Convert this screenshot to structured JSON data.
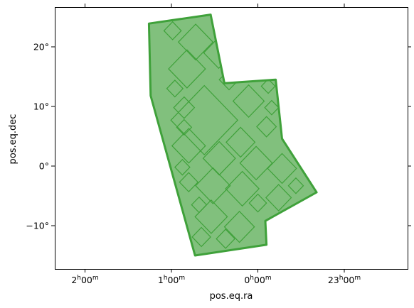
{
  "chart_data": {
    "type": "coverage-map",
    "xlabel": "pos.eq.ra",
    "ylabel": "pos.eq.dec",
    "x_ticks": [
      {
        "label": "2h00m",
        "h": "2",
        "m": "00",
        "ra_deg": 30
      },
      {
        "label": "1h00m",
        "h": "1",
        "m": "00",
        "ra_deg": 15
      },
      {
        "label": "0h00m",
        "h": "0",
        "m": "00",
        "ra_deg": 0
      },
      {
        "label": "23h00m",
        "h": "23",
        "m": "00",
        "ra_deg": -15
      }
    ],
    "y_ticks": [
      {
        "label": "20°",
        "dec": 20
      },
      {
        "label": "10°",
        "dec": 10
      },
      {
        "label": "0°",
        "dec": 0
      },
      {
        "label": "−10°",
        "dec": -10
      }
    ],
    "xlim": [
      37.0,
      -37.0
    ],
    "ylim": [
      -17.5,
      26.5
    ],
    "colors": {
      "fill": "#81c07d",
      "edge": "#3fa13a"
    },
    "region": [
      [
        18.9,
        23.9
      ],
      [
        8.2,
        25.4
      ],
      [
        5.8,
        13.9
      ],
      [
        -3.1,
        14.5
      ],
      [
        -4.2,
        4.6
      ],
      [
        -10.2,
        -4.4
      ],
      [
        -1.3,
        -9.2
      ],
      [
        -1.5,
        -13.2
      ],
      [
        10.9,
        -15.0
      ],
      [
        18.6,
        11.8
      ]
    ],
    "tiles": [
      {
        "ra": 9.3,
        "dec": 7.7,
        "size": 5.8
      },
      {
        "ra": 12.3,
        "dec": 16.3,
        "size": 3.2
      },
      {
        "ra": 10.8,
        "dec": 20.8,
        "size": 3.0
      },
      {
        "ra": 6.8,
        "dec": 19.0,
        "size": 2.6
      },
      {
        "ra": 1.6,
        "dec": 10.9,
        "size": 2.7
      },
      {
        "ra": 12.0,
        "dec": 3.4,
        "size": 2.9
      },
      {
        "ra": 6.7,
        "dec": 1.3,
        "size": 2.8
      },
      {
        "ra": 3.0,
        "dec": 4.0,
        "size": 2.5
      },
      {
        "ra": 0.3,
        "dec": 0.5,
        "size": 2.8
      },
      {
        "ra": -4.2,
        "dec": -0.4,
        "size": 2.5
      },
      {
        "ra": 7.8,
        "dec": -3.3,
        "size": 3.0
      },
      {
        "ra": 2.7,
        "dec": -3.8,
        "size": 2.9
      },
      {
        "ra": -3.6,
        "dec": -5.3,
        "size": 2.2
      },
      {
        "ra": 8.1,
        "dec": -8.5,
        "size": 2.8
      },
      {
        "ra": 3.2,
        "dec": -10.2,
        "size": 2.6
      },
      {
        "ra": 12.0,
        "dec": -2.7,
        "size": 1.6
      },
      {
        "ra": 12.8,
        "dec": 9.8,
        "size": 1.8
      },
      {
        "ra": 5.0,
        "dec": 14.5,
        "size": 1.7
      },
      {
        "ra": -1.5,
        "dec": 6.6,
        "size": 1.7
      },
      {
        "ra": 5.6,
        "dec": -12.2,
        "size": 1.6
      },
      {
        "ra": 9.8,
        "dec": -11.9,
        "size": 1.6
      },
      {
        "ra": 14.8,
        "dec": 22.7,
        "size": 1.5
      },
      {
        "ra": 10.2,
        "dec": -6.5,
        "size": 1.3
      },
      {
        "ra": -6.6,
        "dec": -3.3,
        "size": 1.3
      },
      {
        "ra": 0.0,
        "dec": -6.2,
        "size": 1.5
      },
      {
        "ra": 14.4,
        "dec": 13.0,
        "size": 1.4
      },
      {
        "ra": 4.8,
        "dec": 21.6,
        "size": 1.4
      },
      {
        "ra": -1.8,
        "dec": 13.4,
        "size": 1.2
      },
      {
        "ra": -2.4,
        "dec": 9.8,
        "size": 1.2
      },
      {
        "ra": 13.1,
        "dec": -0.2,
        "size": 1.3
      },
      {
        "ra": 12.8,
        "dec": 6.5,
        "size": 1.3
      }
    ]
  }
}
